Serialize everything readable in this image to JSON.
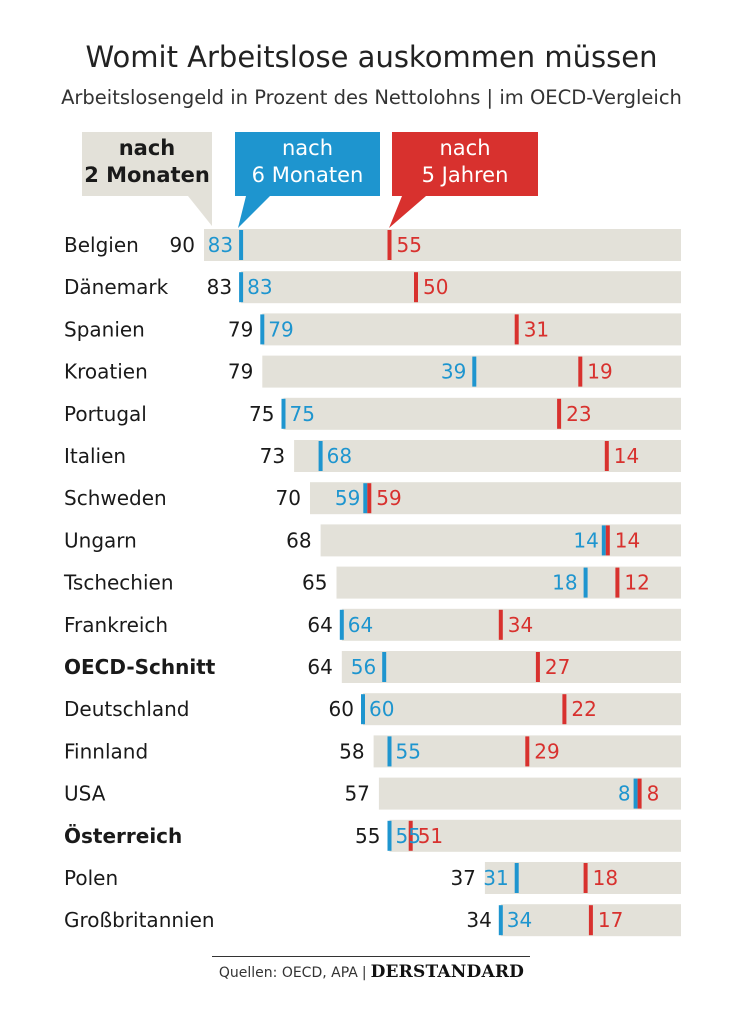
{
  "title": "Womit Arbeitslose auskommen müssen",
  "subtitle": "Arbeitslosengeld in Prozent des Nettolohns | im OECD-Vergleich",
  "source": {
    "label": "Quellen: OECD, APA",
    "separator": "|",
    "brand": "DERSTANDARD"
  },
  "colors": {
    "bar_bg": "#e3e1d9",
    "two_months": "#e3e1d9",
    "six_months": "#1e95cf",
    "five_years": "#d8312e",
    "text": "#1a1a1a"
  },
  "chart_data": {
    "type": "bar",
    "orientation": "horizontal",
    "legend_placement": "top",
    "series": [
      {
        "name": "nach 2 Monaten",
        "legend_lines": [
          "nach",
          "2 Monaten"
        ],
        "color": "#e3e1d9"
      },
      {
        "name": "nach 6 Monaten",
        "legend_lines": [
          "nach",
          "6 Monaten"
        ],
        "color": "#1e95cf"
      },
      {
        "name": "nach 5 Jahren",
        "legend_lines": [
          "nach",
          "5 Jahren"
        ],
        "color": "#d8312e"
      }
    ],
    "rows": [
      {
        "country": "Belgien",
        "m2": 90,
        "m6": 83,
        "y5": 55,
        "bold": false
      },
      {
        "country": "Dänemark",
        "m2": 83,
        "m6": 83,
        "y5": 50,
        "bold": false
      },
      {
        "country": "Spanien",
        "m2": 79,
        "m6": 79,
        "y5": 31,
        "bold": false
      },
      {
        "country": "Kroatien",
        "m2": 79,
        "m6": 39,
        "y5": 19,
        "bold": false
      },
      {
        "country": "Portugal",
        "m2": 75,
        "m6": 75,
        "y5": 23,
        "bold": false
      },
      {
        "country": "Italien",
        "m2": 73,
        "m6": 68,
        "y5": 14,
        "bold": false
      },
      {
        "country": "Schweden",
        "m2": 70,
        "m6": 59,
        "y5": 59,
        "bold": false
      },
      {
        "country": "Ungarn",
        "m2": 68,
        "m6": 14,
        "y5": 14,
        "bold": false
      },
      {
        "country": "Tschechien",
        "m2": 65,
        "m6": 18,
        "y5": 12,
        "bold": false
      },
      {
        "country": "Frankreich",
        "m2": 64,
        "m6": 64,
        "y5": 34,
        "bold": false
      },
      {
        "country": "OECD-Schnitt",
        "m2": 64,
        "m6": 56,
        "y5": 27,
        "bold": true
      },
      {
        "country": "Deutschland",
        "m2": 60,
        "m6": 60,
        "y5": 22,
        "bold": false
      },
      {
        "country": "Finnland",
        "m2": 58,
        "m6": 55,
        "y5": 29,
        "bold": false
      },
      {
        "country": "USA",
        "m2": 57,
        "m6": 8,
        "y5": 8,
        "bold": false
      },
      {
        "country": "Österreich",
        "m2": 55,
        "m6": 55,
        "y5": 51,
        "bold": true
      },
      {
        "country": "Polen",
        "m2": 37,
        "m6": 31,
        "y5": 18,
        "bold": false
      },
      {
        "country": "Großbritannien",
        "m2": 34,
        "m6": 34,
        "y5": 17,
        "bold": false
      }
    ]
  }
}
